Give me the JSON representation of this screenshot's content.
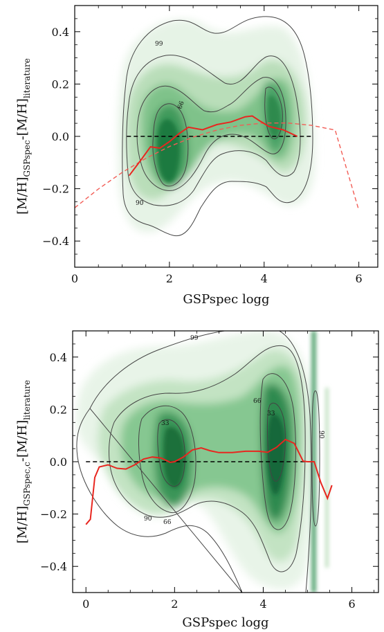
{
  "chart_data": [
    {
      "type": "line",
      "panel": "top",
      "xlabel": "GSPspec logg",
      "ylabel_main": "[M/H]",
      "ylabel_sub1": "GSPspec",
      "ylabel_mid": "-[M/H]",
      "ylabel_sub2": "literature",
      "xlim": [
        0,
        6.4
      ],
      "ylim": [
        -0.5,
        0.5
      ],
      "xticks": [
        0,
        2,
        4,
        6
      ],
      "xtick_labels": [
        "0",
        "2",
        "4",
        "6"
      ],
      "yticks": [
        -0.4,
        -0.2,
        0.0,
        0.2,
        0.4
      ],
      "ytick_labels": [
        "−0.4",
        "−0.2",
        "0.0",
        "0.2",
        "0.4"
      ],
      "contour_labels": [
        "99",
        "66",
        "90"
      ],
      "zero_line": {
        "x": [
          1.1,
          5.0
        ],
        "y": 0.0,
        "style": "dashed",
        "color": "#000000"
      },
      "series": [
        {
          "style": "solid",
          "color": "#e8261f",
          "x": [
            1.15,
            1.4,
            1.6,
            1.8,
            2.0,
            2.2,
            2.4,
            2.7,
            3.0,
            3.3,
            3.6,
            3.75,
            3.9,
            4.1,
            4.4,
            4.7
          ],
          "y": [
            -0.15,
            -0.09,
            -0.04,
            -0.045,
            -0.02,
            0.01,
            0.035,
            0.025,
            0.045,
            0.055,
            0.075,
            0.078,
            0.06,
            0.038,
            0.025,
            0.0
          ]
        },
        {
          "style": "dashed",
          "color": "#f25c55",
          "x": [
            0.0,
            0.5,
            1.0,
            1.5,
            2.0,
            2.5,
            3.0,
            3.5,
            4.0,
            4.5,
            5.0,
            5.5,
            6.0
          ],
          "y": [
            -0.273,
            -0.201,
            -0.138,
            -0.084,
            -0.039,
            -0.003,
            0.024,
            0.042,
            0.051,
            0.051,
            0.042,
            0.024,
            -0.282
          ]
        }
      ]
    },
    {
      "type": "line",
      "panel": "bottom",
      "xlabel": "GSPspec logg",
      "ylabel_main": "[M/H]",
      "ylabel_sub1": "GSPspec,c",
      "ylabel_mid": "-[M/H]",
      "ylabel_sub2": "literature",
      "xlim": [
        -0.3,
        6.6
      ],
      "ylim": [
        -0.5,
        0.5
      ],
      "xticks": [
        0,
        2,
        4,
        6
      ],
      "xtick_labels": [
        "0",
        "2",
        "4",
        "6"
      ],
      "yticks": [
        -0.4,
        -0.2,
        0.0,
        0.2,
        0.4
      ],
      "ytick_labels": [
        "−0.4",
        "−0.2",
        "0.0",
        "0.2",
        "0.4"
      ],
      "contour_labels": [
        "99",
        "33",
        "66",
        "66",
        "33",
        "90",
        "90"
      ],
      "zero_line": {
        "x": [
          0.0,
          5.0
        ],
        "y": 0.0,
        "style": "dashed",
        "color": "#000000"
      },
      "series": [
        {
          "style": "solid",
          "color": "#e8261f",
          "x": [
            0.0,
            0.1,
            0.2,
            0.3,
            0.5,
            0.7,
            0.9,
            1.1,
            1.3,
            1.5,
            1.7,
            1.9,
            2.0,
            2.2,
            2.4,
            2.6,
            2.8,
            3.0,
            3.3,
            3.6,
            3.9,
            4.1,
            4.3,
            4.5,
            4.7,
            4.9,
            5.0,
            5.15,
            5.3,
            5.45,
            5.55
          ],
          "y": [
            -0.24,
            -0.22,
            -0.06,
            -0.02,
            -0.012,
            -0.025,
            -0.028,
            -0.012,
            0.01,
            0.018,
            0.014,
            -0.002,
            0.0,
            0.018,
            0.045,
            0.053,
            0.042,
            0.035,
            0.035,
            0.04,
            0.04,
            0.036,
            0.055,
            0.085,
            0.07,
            0.002,
            0.0,
            0.0,
            -0.08,
            -0.14,
            -0.09
          ]
        }
      ]
    }
  ]
}
